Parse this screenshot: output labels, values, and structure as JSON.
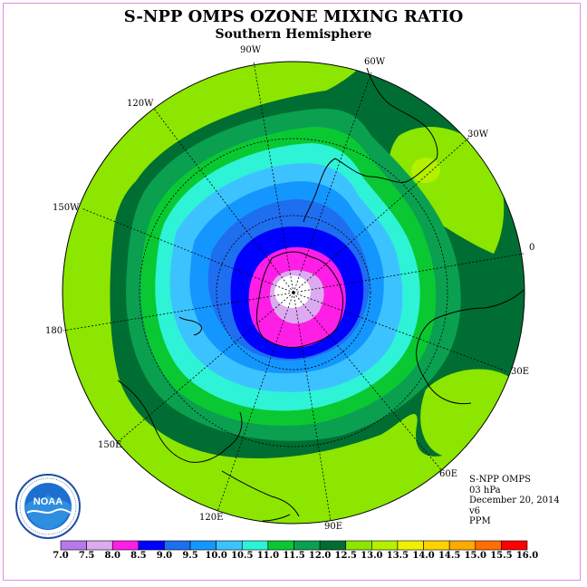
{
  "title": "S-NPP OMPS OZONE MIXING RATIO",
  "subtitle": "Southern Hemisphere",
  "longitude_labels": {
    "w90": "90W",
    "w60": "60W",
    "w30": "30W",
    "w120": "120W",
    "w150": "150W",
    "zero": "0",
    "lon180": "180",
    "e30": "30E",
    "e150": "150E",
    "e60": "60E",
    "e120": "120E",
    "e90": "90E"
  },
  "info": {
    "instrument": "S-NPP OMPS",
    "level": "03 hPa",
    "date": "December 20, 2014",
    "version": "v6",
    "units": "PPM"
  },
  "logo": {
    "text": "NOAA",
    "icon": "noaa-logo-icon"
  },
  "colorbar": {
    "labels": [
      "7.0",
      "7.5",
      "8.0",
      "8.5",
      "9.0",
      "9.5",
      "10.0",
      "10.5",
      "11.0",
      "11.5",
      "12.0",
      "12.5",
      "13.0",
      "13.5",
      "14.0",
      "14.5",
      "15.0",
      "15.5",
      "16.0"
    ],
    "colors": [
      "#b878ea",
      "#dcaaf0",
      "#ff1ee6",
      "#0000ff",
      "#1e6ef0",
      "#1496ff",
      "#3cc3ff",
      "#2ef3d6",
      "#0ac832",
      "#0aa050",
      "#006e32",
      "#8ce600",
      "#b4f000",
      "#f0f000",
      "#ffd200",
      "#ffaa00",
      "#ff6e00",
      "#ff0000",
      "#9b5a3c"
    ]
  },
  "map_colors": {
    "light_green": "#8ce600",
    "mid_green": "#0aa050",
    "dark_green": "#006e32",
    "green": "#0ac832",
    "cyan": "#2ef3d6",
    "sky": "#3cc3ff",
    "blue1": "#1496ff",
    "blue2": "#1e6ef0",
    "deep_blue": "#0000ff",
    "magenta": "#ff1ee6",
    "lavender": "#dcaaf0",
    "yellow_green": "#b4f000"
  }
}
